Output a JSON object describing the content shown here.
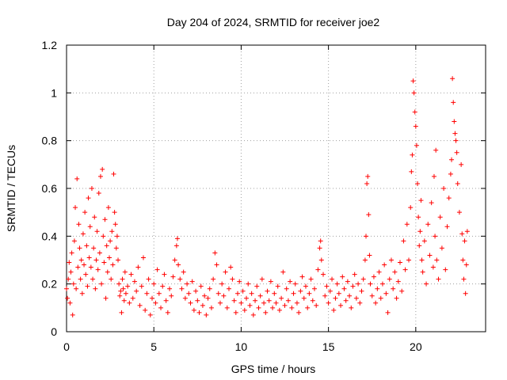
{
  "chart_data": {
    "type": "scatter",
    "title": "Day 204 of 2024, SRMTID for receiver joe2",
    "xlabel": "GPS time / hours",
    "ylabel": "SRMTID / TECUs",
    "xlim": [
      0,
      24
    ],
    "ylim": [
      0,
      1.2
    ],
    "xticks": [
      0,
      5,
      10,
      15,
      20
    ],
    "yticks": [
      0,
      0.2,
      0.4,
      0.6,
      0.8,
      1,
      1.2
    ],
    "xtick_labels": [
      "0",
      "5",
      "10",
      "15",
      "20"
    ],
    "ytick_labels": [
      "0",
      "0.2",
      "0.4",
      "0.6",
      "0.8",
      "1",
      "1.2"
    ],
    "grid": true,
    "marker": "+",
    "series": [
      {
        "name": "SRMTID",
        "color": "#ff0000",
        "points": [
          [
            0.0,
            0.18
          ],
          [
            0.05,
            0.14
          ],
          [
            0.1,
            0.22
          ],
          [
            0.15,
            0.29
          ],
          [
            0.2,
            0.12
          ],
          [
            0.25,
            0.25
          ],
          [
            0.3,
            0.33
          ],
          [
            0.35,
            0.07
          ],
          [
            0.4,
            0.2
          ],
          [
            0.45,
            0.38
          ],
          [
            0.5,
            0.52
          ],
          [
            0.55,
            0.18
          ],
          [
            0.6,
            0.64
          ],
          [
            0.65,
            0.27
          ],
          [
            0.7,
            0.45
          ],
          [
            0.75,
            0.35
          ],
          [
            0.8,
            0.22
          ],
          [
            0.85,
            0.3
          ],
          [
            0.9,
            0.16
          ],
          [
            0.95,
            0.41
          ],
          [
            1.0,
            0.28
          ],
          [
            1.05,
            0.5
          ],
          [
            1.1,
            0.24
          ],
          [
            1.15,
            0.36
          ],
          [
            1.2,
            0.19
          ],
          [
            1.25,
            0.56
          ],
          [
            1.3,
            0.31
          ],
          [
            1.35,
            0.44
          ],
          [
            1.4,
            0.27
          ],
          [
            1.45,
            0.6
          ],
          [
            1.5,
            0.22
          ],
          [
            1.55,
            0.35
          ],
          [
            1.6,
            0.48
          ],
          [
            1.65,
            0.18
          ],
          [
            1.7,
            0.3
          ],
          [
            1.75,
            0.42
          ],
          [
            1.8,
            0.26
          ],
          [
            1.85,
            0.58
          ],
          [
            1.9,
            0.33
          ],
          [
            1.95,
            0.65
          ],
          [
            2.0,
            0.2
          ],
          [
            2.05,
            0.68
          ],
          [
            2.1,
            0.4
          ],
          [
            2.15,
            0.29
          ],
          [
            2.2,
            0.47
          ],
          [
            2.25,
            0.14
          ],
          [
            2.3,
            0.36
          ],
          [
            2.35,
            0.25
          ],
          [
            2.4,
            0.52
          ],
          [
            2.45,
            0.31
          ],
          [
            2.5,
            0.38
          ],
          [
            2.55,
            0.22
          ],
          [
            2.6,
            0.42
          ],
          [
            2.65,
            0.28
          ],
          [
            2.7,
            0.66
          ],
          [
            2.75,
            0.5
          ],
          [
            2.8,
            0.45
          ],
          [
            2.85,
            0.35
          ],
          [
            2.9,
            0.4
          ],
          [
            2.95,
            0.3
          ],
          [
            3.0,
            0.2
          ],
          [
            3.05,
            0.15
          ],
          [
            3.1,
            0.17
          ],
          [
            3.15,
            0.08
          ],
          [
            3.2,
            0.22
          ],
          [
            3.25,
            0.18
          ],
          [
            3.3,
            0.13
          ],
          [
            3.35,
            0.25
          ],
          [
            3.4,
            0.16
          ],
          [
            3.5,
            0.19
          ],
          [
            3.6,
            0.12
          ],
          [
            3.7,
            0.24
          ],
          [
            3.8,
            0.14
          ],
          [
            3.9,
            0.21
          ],
          [
            4.0,
            0.17
          ],
          [
            4.1,
            0.27
          ],
          [
            4.2,
            0.11
          ],
          [
            4.3,
            0.19
          ],
          [
            4.4,
            0.31
          ],
          [
            4.5,
            0.09
          ],
          [
            4.6,
            0.16
          ],
          [
            4.7,
            0.22
          ],
          [
            4.8,
            0.07
          ],
          [
            4.9,
            0.14
          ],
          [
            5.0,
            0.2
          ],
          [
            5.1,
            0.12
          ],
          [
            5.2,
            0.26
          ],
          [
            5.3,
            0.16
          ],
          [
            5.4,
            0.1
          ],
          [
            5.5,
            0.19
          ],
          [
            5.6,
            0.24
          ],
          [
            5.7,
            0.13
          ],
          [
            5.8,
            0.08
          ],
          [
            5.9,
            0.18
          ],
          [
            6.0,
            0.15
          ],
          [
            6.1,
            0.23
          ],
          [
            6.2,
            0.3
          ],
          [
            6.3,
            0.36
          ],
          [
            6.35,
            0.39
          ],
          [
            6.4,
            0.28
          ],
          [
            6.5,
            0.22
          ],
          [
            6.6,
            0.18
          ],
          [
            6.7,
            0.25
          ],
          [
            6.8,
            0.14
          ],
          [
            6.9,
            0.2
          ],
          [
            7.0,
            0.16
          ],
          [
            7.1,
            0.12
          ],
          [
            7.2,
            0.21
          ],
          [
            7.3,
            0.09
          ],
          [
            7.4,
            0.17
          ],
          [
            7.5,
            0.13
          ],
          [
            7.6,
            0.08
          ],
          [
            7.7,
            0.19
          ],
          [
            7.8,
            0.11
          ],
          [
            7.9,
            0.15
          ],
          [
            8.0,
            0.07
          ],
          [
            8.1,
            0.14
          ],
          [
            8.2,
            0.18
          ],
          [
            8.3,
            0.1
          ],
          [
            8.4,
            0.22
          ],
          [
            8.5,
            0.33
          ],
          [
            8.6,
            0.28
          ],
          [
            8.7,
            0.16
          ],
          [
            8.8,
            0.12
          ],
          [
            8.9,
            0.2
          ],
          [
            9.0,
            0.15
          ],
          [
            9.1,
            0.25
          ],
          [
            9.2,
            0.1
          ],
          [
            9.3,
            0.18
          ],
          [
            9.4,
            0.27
          ],
          [
            9.5,
            0.22
          ],
          [
            9.6,
            0.13
          ],
          [
            9.7,
            0.08
          ],
          [
            9.8,
            0.16
          ],
          [
            9.9,
            0.21
          ],
          [
            10.0,
            0.12
          ],
          [
            10.1,
            0.17
          ],
          [
            10.2,
            0.09
          ],
          [
            10.3,
            0.14
          ],
          [
            10.4,
            0.2
          ],
          [
            10.5,
            0.11
          ],
          [
            10.6,
            0.16
          ],
          [
            10.7,
            0.07
          ],
          [
            10.8,
            0.13
          ],
          [
            10.9,
            0.19
          ],
          [
            11.0,
            0.1
          ],
          [
            11.1,
            0.15
          ],
          [
            11.2,
            0.22
          ],
          [
            11.3,
            0.12
          ],
          [
            11.4,
            0.08
          ],
          [
            11.5,
            0.17
          ],
          [
            11.6,
            0.13
          ],
          [
            11.7,
            0.21
          ],
          [
            11.8,
            0.1
          ],
          [
            11.9,
            0.16
          ],
          [
            12.0,
            0.12
          ],
          [
            12.1,
            0.19
          ],
          [
            12.2,
            0.09
          ],
          [
            12.3,
            0.14
          ],
          [
            12.4,
            0.25
          ],
          [
            12.5,
            0.11
          ],
          [
            12.6,
            0.18
          ],
          [
            12.7,
            0.13
          ],
          [
            12.8,
            0.21
          ],
          [
            12.9,
            0.1
          ],
          [
            13.0,
            0.16
          ],
          [
            13.1,
            0.2
          ],
          [
            13.2,
            0.12
          ],
          [
            13.3,
            0.08
          ],
          [
            13.4,
            0.17
          ],
          [
            13.5,
            0.23
          ],
          [
            13.6,
            0.14
          ],
          [
            13.7,
            0.19
          ],
          [
            13.8,
            0.1
          ],
          [
            13.9,
            0.16
          ],
          [
            14.0,
            0.22
          ],
          [
            14.1,
            0.13
          ],
          [
            14.2,
            0.18
          ],
          [
            14.3,
            0.11
          ],
          [
            14.4,
            0.26
          ],
          [
            14.5,
            0.35
          ],
          [
            14.55,
            0.38
          ],
          [
            14.6,
            0.3
          ],
          [
            14.7,
            0.24
          ],
          [
            14.8,
            0.15
          ],
          [
            14.9,
            0.19
          ],
          [
            15.0,
            0.12
          ],
          [
            15.1,
            0.17
          ],
          [
            15.2,
            0.22
          ],
          [
            15.3,
            0.09
          ],
          [
            15.4,
            0.14
          ],
          [
            15.5,
            0.2
          ],
          [
            15.6,
            0.16
          ],
          [
            15.7,
            0.11
          ],
          [
            15.8,
            0.23
          ],
          [
            15.9,
            0.18
          ],
          [
            16.0,
            0.13
          ],
          [
            16.1,
            0.21
          ],
          [
            16.2,
            0.15
          ],
          [
            16.3,
            0.1
          ],
          [
            16.4,
            0.19
          ],
          [
            16.5,
            0.24
          ],
          [
            16.6,
            0.14
          ],
          [
            16.7,
            0.2
          ],
          [
            16.8,
            0.12
          ],
          [
            16.9,
            0.17
          ],
          [
            17.0,
            0.22
          ],
          [
            17.1,
            0.3
          ],
          [
            17.15,
            0.4
          ],
          [
            17.2,
            0.62
          ],
          [
            17.25,
            0.65
          ],
          [
            17.3,
            0.49
          ],
          [
            17.35,
            0.32
          ],
          [
            17.4,
            0.2
          ],
          [
            17.5,
            0.15
          ],
          [
            17.6,
            0.23
          ],
          [
            17.7,
            0.12
          ],
          [
            17.8,
            0.18
          ],
          [
            17.9,
            0.25
          ],
          [
            18.0,
            0.14
          ],
          [
            18.1,
            0.2
          ],
          [
            18.2,
            0.28
          ],
          [
            18.3,
            0.16
          ],
          [
            18.4,
            0.08
          ],
          [
            18.5,
            0.22
          ],
          [
            18.6,
            0.3
          ],
          [
            18.7,
            0.18
          ],
          [
            18.8,
            0.25
          ],
          [
            18.9,
            0.14
          ],
          [
            19.0,
            0.21
          ],
          [
            19.1,
            0.29
          ],
          [
            19.2,
            0.17
          ],
          [
            19.3,
            0.38
          ],
          [
            19.4,
            0.26
          ],
          [
            19.5,
            0.45
          ],
          [
            19.6,
            0.3
          ],
          [
            19.7,
            0.52
          ],
          [
            19.75,
            0.67
          ],
          [
            19.8,
            0.74
          ],
          [
            19.85,
            1.05
          ],
          [
            19.9,
            1.0
          ],
          [
            19.95,
            0.92
          ],
          [
            20.0,
            0.86
          ],
          [
            20.05,
            0.78
          ],
          [
            20.1,
            0.62
          ],
          [
            20.15,
            0.48
          ],
          [
            20.2,
            0.36
          ],
          [
            20.25,
            0.42
          ],
          [
            20.3,
            0.55
          ],
          [
            20.35,
            0.3
          ],
          [
            20.4,
            0.25
          ],
          [
            20.5,
            0.38
          ],
          [
            20.6,
            0.2
          ],
          [
            20.7,
            0.45
          ],
          [
            20.8,
            0.32
          ],
          [
            20.9,
            0.54
          ],
          [
            21.0,
            0.27
          ],
          [
            21.05,
            0.65
          ],
          [
            21.1,
            0.4
          ],
          [
            21.15,
            0.76
          ],
          [
            21.2,
            0.3
          ],
          [
            21.3,
            0.22
          ],
          [
            21.4,
            0.48
          ],
          [
            21.5,
            0.35
          ],
          [
            21.6,
            0.6
          ],
          [
            21.7,
            0.26
          ],
          [
            21.8,
            0.44
          ],
          [
            21.9,
            0.56
          ],
          [
            22.0,
            0.66
          ],
          [
            22.05,
            0.72
          ],
          [
            22.1,
            1.06
          ],
          [
            22.15,
            0.96
          ],
          [
            22.2,
            0.88
          ],
          [
            22.25,
            0.83
          ],
          [
            22.3,
            0.8
          ],
          [
            22.35,
            0.75
          ],
          [
            22.4,
            0.62
          ],
          [
            22.5,
            0.5
          ],
          [
            22.6,
            0.7
          ],
          [
            22.65,
            0.41
          ],
          [
            22.7,
            0.3
          ],
          [
            22.75,
            0.22
          ],
          [
            22.8,
            0.38
          ],
          [
            22.85,
            0.16
          ],
          [
            22.9,
            0.28
          ],
          [
            22.95,
            0.42
          ]
        ]
      }
    ]
  }
}
